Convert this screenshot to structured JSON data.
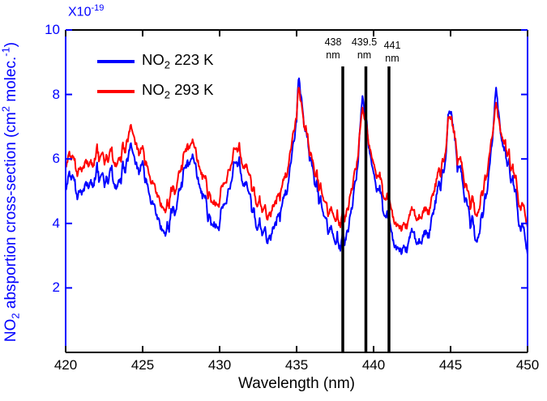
{
  "figure": {
    "background": "#ffffff",
    "multiplier": {
      "base": "X10",
      "exponent": "-19",
      "color": "#0000ff"
    },
    "x_axis": {
      "color": "#000000",
      "label": "Wavelength (nm)",
      "tick_labels": [
        "420",
        "425",
        "430",
        "435",
        "440",
        "445",
        "450"
      ]
    },
    "y_axis": {
      "color": "#0000ff",
      "tick_labels": [
        "2",
        "4",
        "6",
        "8",
        "10"
      ],
      "label_parts": [
        {
          "t": "NO"
        },
        {
          "t": "2",
          "style": "sub"
        },
        {
          "t": " absportion cross-section (cm"
        },
        {
          "t": "2",
          "style": "sup"
        },
        {
          "t": " molec."
        },
        {
          "t": "-1",
          "style": "sup"
        },
        {
          "t": ")"
        }
      ]
    },
    "legend": {
      "entries": [
        {
          "color": "#0000ff",
          "parts": [
            {
              "t": "NO"
            },
            {
              "t": "2",
              "style": "sub"
            },
            {
              "t": " 223 K"
            }
          ]
        },
        {
          "color": "#ff0000",
          "parts": [
            {
              "t": "NO"
            },
            {
              "t": "2",
              "style": "sub"
            },
            {
              "t": " 293 K"
            }
          ]
        }
      ]
    },
    "markers": [
      {
        "wavelength": 438,
        "line1": "438",
        "line2": "nm"
      },
      {
        "wavelength": 439.5,
        "line1": "439.5",
        "line2": "nm"
      },
      {
        "wavelength": 441,
        "line1": "441",
        "line2": "nm"
      }
    ]
  },
  "chart_data": {
    "type": "line",
    "title": "",
    "xlabel": "Wavelength (nm)",
    "ylabel": "NO2 absportion cross-section (cm2 molec.-1)",
    "y_multiplier": "x10^-19",
    "xlim": [
      420,
      450
    ],
    "ylim": [
      0,
      10
    ],
    "x_ticks": [
      420,
      425,
      430,
      435,
      440,
      445,
      450
    ],
    "y_ticks": [
      2,
      4,
      6,
      8,
      10
    ],
    "grid": false,
    "legend_position": "upper-left-inside",
    "vertical_marker_lines_nm": [
      438,
      439.5,
      441
    ],
    "keypoints_x_nm": [
      420,
      420.4,
      420.8,
      421.3,
      421.7,
      422.1,
      422.6,
      423,
      423.4,
      423.8,
      424.1,
      424.3,
      424.6,
      425,
      425.5,
      426,
      426.4,
      426.8,
      427.2,
      427.6,
      427.9,
      428.4,
      428.9,
      429.3,
      429.7,
      430.1,
      430.6,
      431,
      431.4,
      431.9,
      432.4,
      433,
      433.4,
      434,
      434.5,
      434.9,
      435.15,
      435.5,
      436,
      436.5,
      437,
      437.5,
      437.8,
      438.2,
      438.6,
      439,
      439.3,
      439.7,
      440.2,
      440.7,
      441.2,
      441.7,
      442.2,
      442.7,
      443.1,
      443.6,
      444.1,
      444.6,
      444.95,
      445.3,
      445.8,
      446.2,
      446.6,
      447,
      447.4,
      447.7,
      447.95,
      448.3,
      448.7,
      449.1,
      449.5,
      450
    ],
    "series": [
      {
        "name": "NO2 223 K",
        "color": "#0000ff",
        "noise_amplitude": 0.3,
        "values": [
          5.1,
          5.5,
          5.0,
          5.2,
          5.4,
          5.6,
          5.2,
          5.5,
          5.3,
          5.7,
          6.0,
          6.3,
          5.9,
          5.6,
          4.9,
          4.1,
          3.8,
          4.1,
          4.7,
          5.5,
          6.0,
          5.7,
          4.8,
          4.2,
          3.7,
          4.2,
          5.0,
          6.1,
          5.6,
          4.8,
          4.1,
          3.7,
          3.8,
          4.4,
          5.3,
          6.6,
          8.5,
          7.1,
          5.8,
          4.8,
          4.1,
          3.5,
          3.4,
          3.7,
          4.4,
          5.9,
          8.1,
          6.4,
          5.2,
          4.4,
          3.7,
          3.2,
          3.5,
          3.6,
          3.2,
          3.8,
          4.7,
          5.9,
          7.5,
          6.3,
          5.1,
          4.3,
          3.5,
          4.2,
          5.3,
          6.5,
          8.4,
          6.9,
          5.9,
          5.1,
          4.1,
          3.3
        ]
      },
      {
        "name": "NO2 293 K",
        "color": "#ff0000",
        "noise_amplitude": 0.27,
        "values": [
          5.8,
          6.1,
          5.7,
          5.9,
          6.0,
          6.2,
          5.9,
          6.1,
          6.0,
          6.3,
          6.6,
          6.9,
          6.5,
          6.1,
          5.5,
          4.8,
          4.5,
          4.8,
          5.3,
          6.0,
          6.5,
          6.2,
          5.4,
          4.9,
          4.4,
          4.9,
          5.6,
          6.5,
          6.1,
          5.4,
          4.8,
          4.4,
          4.5,
          5.0,
          5.8,
          6.9,
          8.2,
          7.1,
          6.0,
          5.2,
          4.6,
          4.2,
          4.1,
          4.4,
          5.0,
          6.1,
          7.7,
          6.5,
          5.6,
          4.9,
          4.4,
          3.9,
          4.2,
          4.3,
          4.0,
          4.5,
          5.2,
          6.2,
          7.3,
          6.4,
          5.5,
          4.8,
          4.3,
          4.9,
          5.8,
          6.7,
          7.9,
          7.0,
          6.2,
          5.5,
          4.7,
          4.1
        ]
      }
    ],
    "noise": {
      "node_step_nm": 0.12,
      "sample_step_nm": 0.04,
      "seed": 20231
    }
  }
}
